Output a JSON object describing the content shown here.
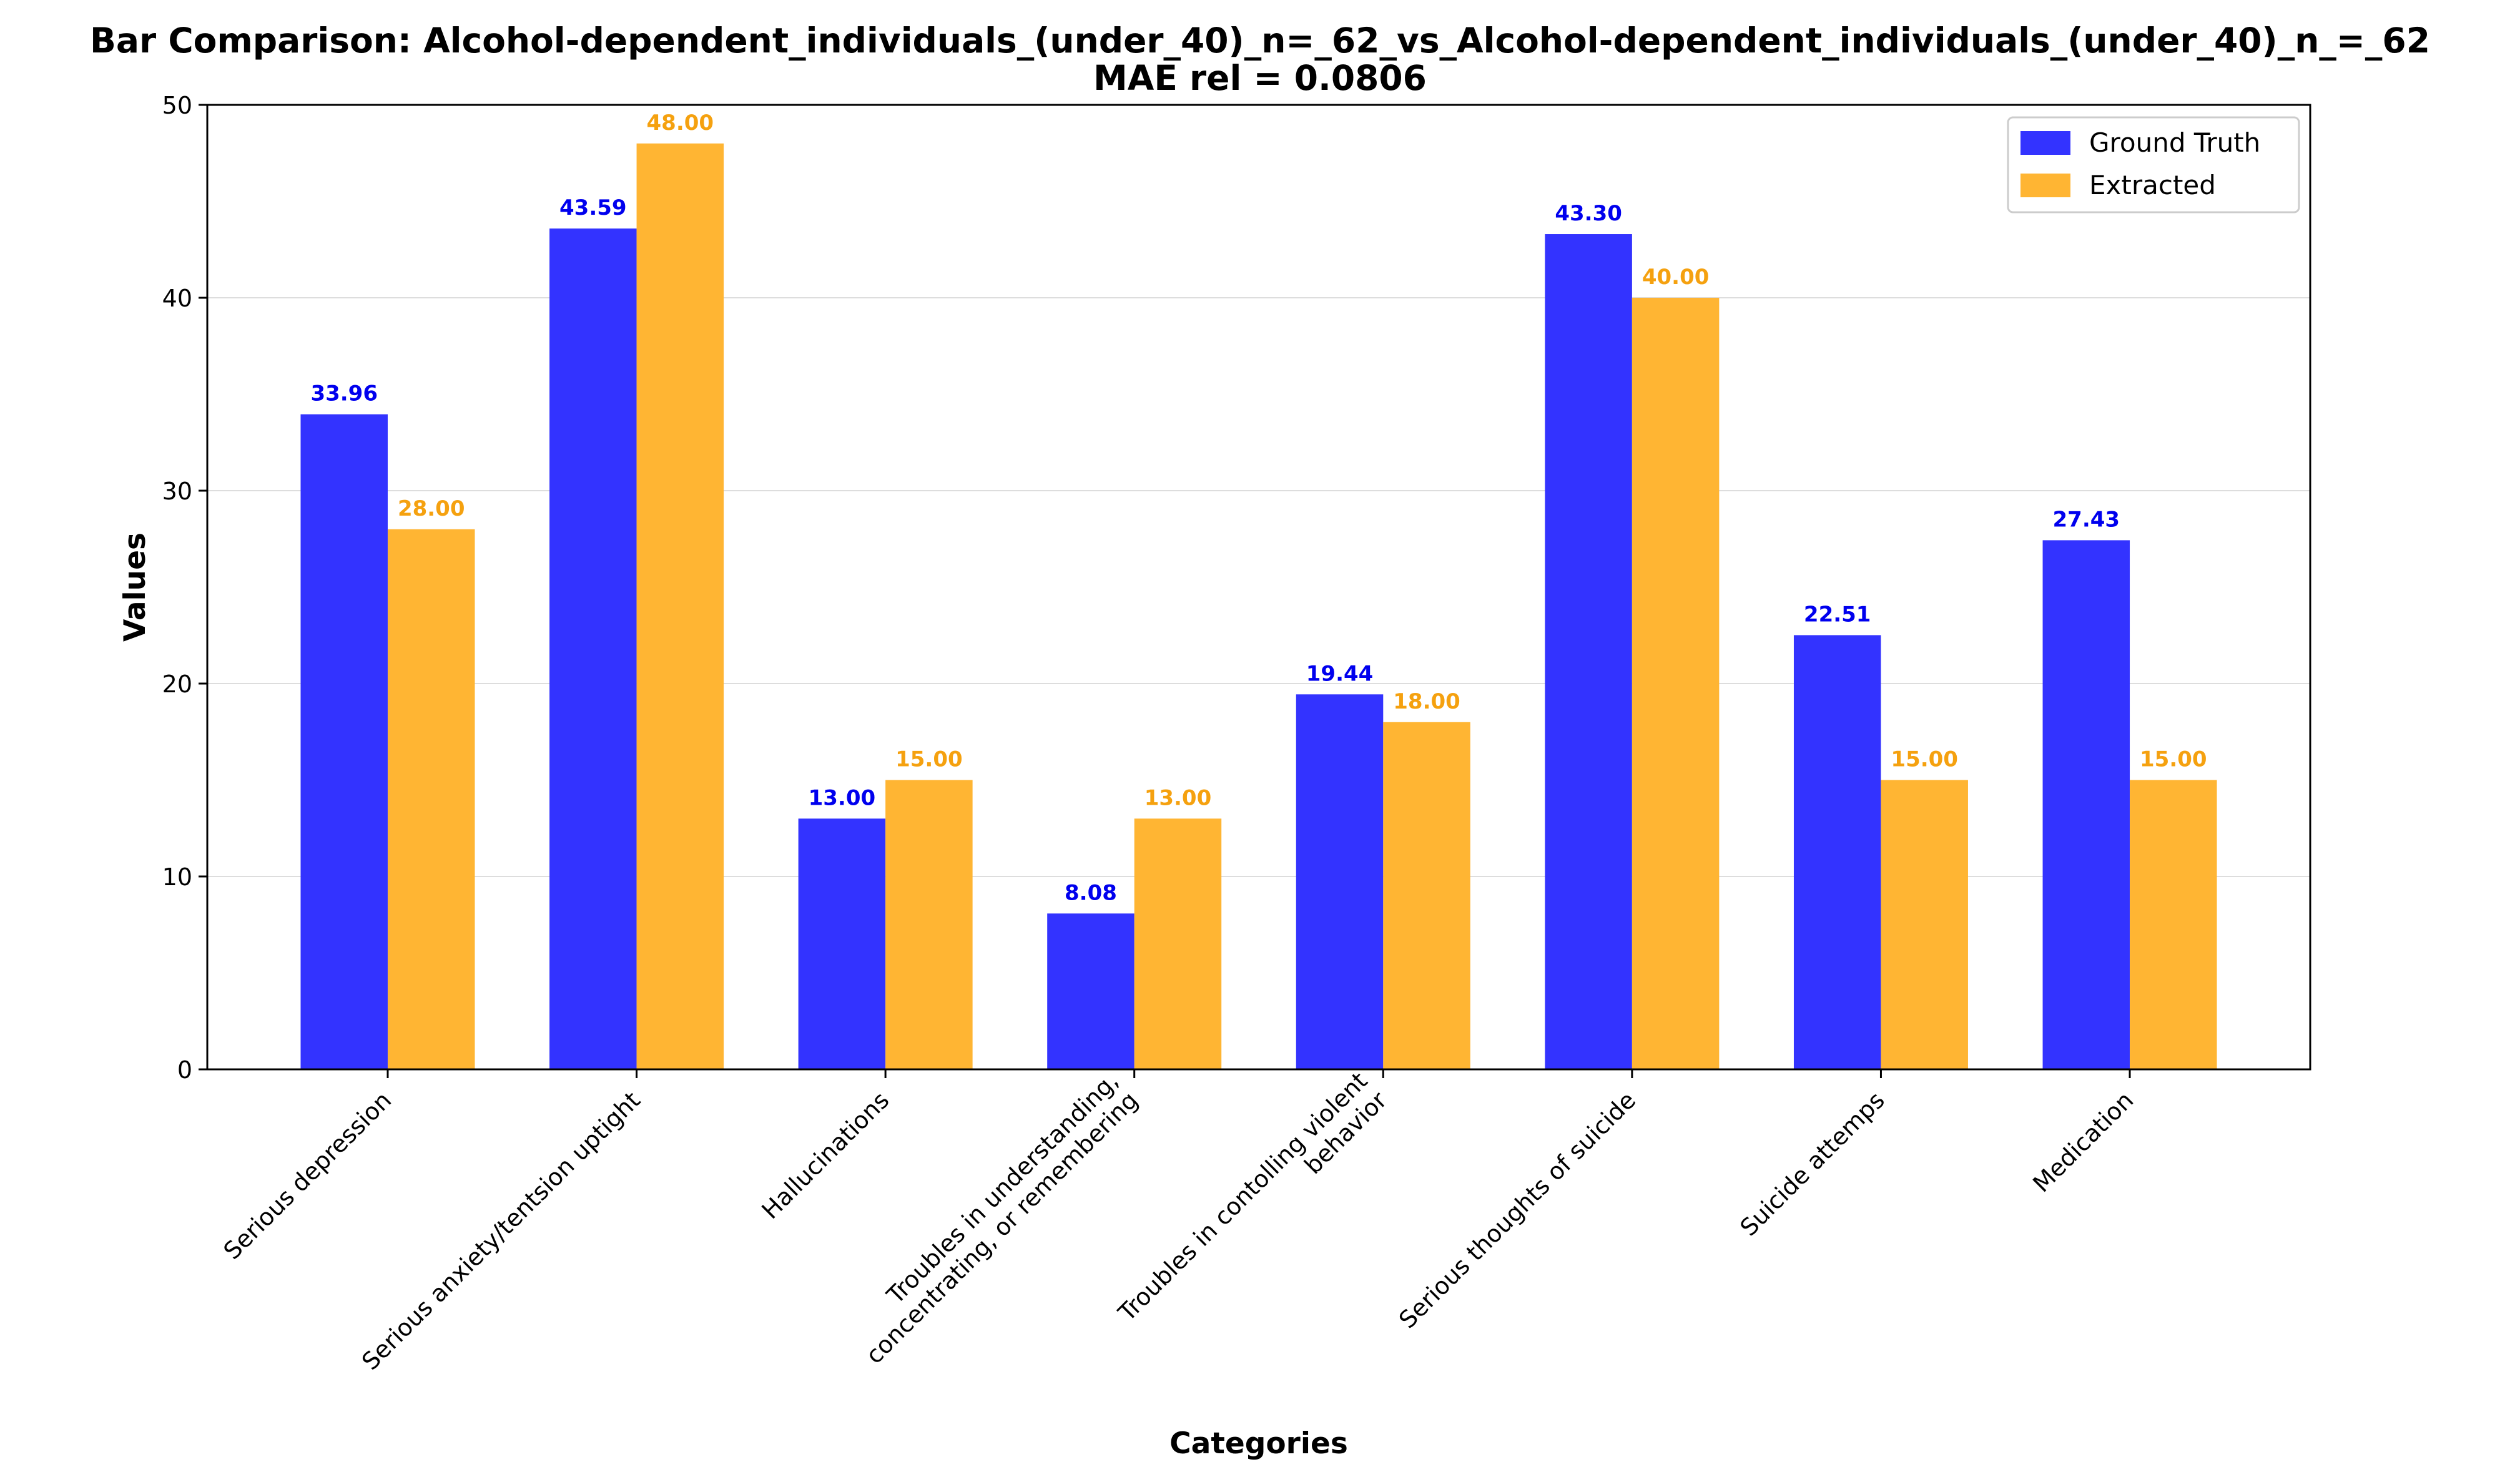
{
  "chart_data": {
    "type": "bar",
    "title": "Bar Comparison: Alcohol-dependent_individuals_(under_40)_n=_62_vs_Alcohol-dependent_individuals_(under_40)_n_=_62",
    "subtitle": "MAE rel = 0.0806",
    "xlabel": "Categories",
    "ylabel": "Values",
    "ylim": [
      0,
      50
    ],
    "yticks": [
      0,
      10,
      20,
      30,
      40,
      50
    ],
    "grid": true,
    "legend_position": "top-right",
    "categories": [
      "Serious depression",
      "Serious anxiety/tentsion uptight",
      "Hallucinations",
      "Troubles in understanding,\nconcentrating, or remembering",
      "Troubles in contolling violent\nbehavior",
      "Serious thoughts of suicide",
      "Suicide attemps",
      "Medication"
    ],
    "series": [
      {
        "name": "Ground Truth",
        "color": "#3333ff",
        "label_color": "#0000ee",
        "values": [
          33.96,
          43.59,
          13.0,
          8.08,
          19.44,
          43.3,
          22.51,
          27.43
        ]
      },
      {
        "name": "Extracted",
        "color": "#ffb533",
        "label_color": "#f5a10f",
        "values": [
          28.0,
          48.0,
          15.0,
          13.0,
          18.0,
          40.0,
          15.0,
          15.0
        ]
      }
    ]
  }
}
